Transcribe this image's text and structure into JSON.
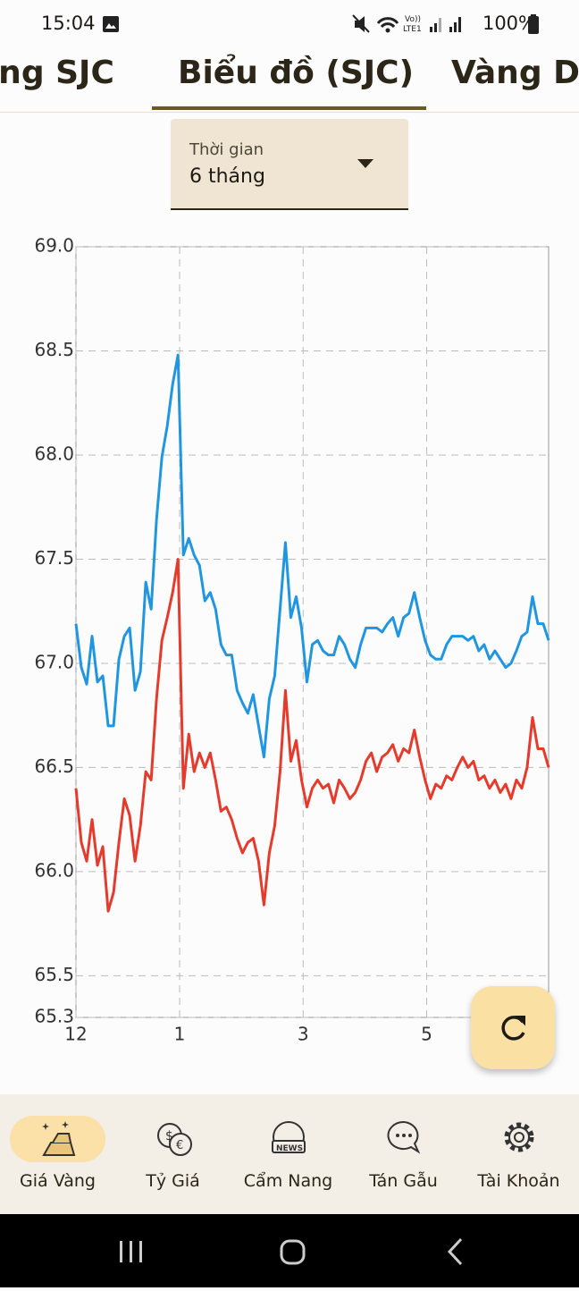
{
  "status": {
    "time": "15:04",
    "battery": "100%"
  },
  "tabs": [
    "Vàng SJC",
    "Biểu đồ (SJC)",
    "Vàng D"
  ],
  "filter": {
    "label": "Thời gian",
    "value": "6 tháng"
  },
  "chart_data": {
    "type": "line",
    "xlim": [
      0,
      88
    ],
    "xticks": [
      {
        "value": 0,
        "label": "12"
      },
      {
        "value": 19.3,
        "label": "1"
      },
      {
        "value": 42.3,
        "label": "3"
      },
      {
        "value": 65.3,
        "label": "5"
      }
    ],
    "ylim": [
      65.3,
      69
    ],
    "yticks": [
      {
        "value": 69,
        "label": "69.0"
      },
      68.5,
      {
        "value": 68,
        "label": "68.0"
      },
      67.5,
      {
        "value": 67,
        "label": "67.0"
      },
      66.5,
      {
        "value": 66,
        "label": "66.0"
      },
      65.5,
      65.3
    ],
    "grid": true,
    "series": [
      {
        "color": "#2196e0",
        "values": [
          67.19,
          66.98,
          66.9,
          67.13,
          66.91,
          66.94,
          66.7,
          66.7,
          67.02,
          67.13,
          67.17,
          66.87,
          66.96,
          67.39,
          67.26,
          67.69,
          67.99,
          68.14,
          68.34,
          68.48,
          67.52,
          67.6,
          67.52,
          67.47,
          67.3,
          67.34,
          67.26,
          67.09,
          67.04,
          67.04,
          66.87,
          66.81,
          66.76,
          66.85,
          66.7,
          66.55,
          66.83,
          66.94,
          67.26,
          67.58,
          67.22,
          67.32,
          67.17,
          66.91,
          67.09,
          67.11,
          67.06,
          67.04,
          67.04,
          67.13,
          67.09,
          67.02,
          66.98,
          67.09,
          67.17,
          67.17,
          67.17,
          67.15,
          67.19,
          67.22,
          67.13,
          67.22,
          67.24,
          67.34,
          67.22,
          67.11,
          67.04,
          67.02,
          67.02,
          67.09,
          67.13,
          67.13,
          67.13,
          67.11,
          67.13,
          67.06,
          67.09,
          67.02,
          67.06,
          67.02,
          66.98,
          67.0,
          67.06,
          67.13,
          67.15,
          67.32,
          67.19,
          67.19,
          67.11
        ]
      },
      {
        "color": "#e53b2c",
        "values": [
          66.4,
          66.14,
          66.05,
          66.25,
          66.03,
          66.12,
          65.81,
          65.9,
          66.14,
          66.35,
          66.27,
          66.05,
          66.22,
          66.48,
          66.44,
          66.83,
          67.11,
          67.22,
          67.34,
          67.5,
          66.4,
          66.66,
          66.48,
          66.57,
          66.5,
          66.57,
          66.44,
          66.29,
          66.31,
          66.25,
          66.16,
          66.09,
          66.14,
          66.16,
          66.05,
          65.84,
          66.09,
          66.22,
          66.48,
          66.87,
          66.53,
          66.63,
          66.44,
          66.31,
          66.4,
          66.44,
          66.4,
          66.42,
          66.33,
          66.44,
          66.4,
          66.35,
          66.38,
          66.44,
          66.53,
          66.57,
          66.48,
          66.55,
          66.57,
          66.61,
          66.53,
          66.59,
          66.57,
          66.68,
          66.55,
          66.44,
          66.35,
          66.42,
          66.4,
          66.46,
          66.44,
          66.5,
          66.55,
          66.5,
          66.53,
          66.44,
          66.46,
          66.4,
          66.44,
          66.38,
          66.42,
          66.35,
          66.44,
          66.4,
          66.5,
          66.74,
          66.59,
          66.59,
          66.5
        ]
      }
    ]
  },
  "nav": [
    "Giá Vàng",
    "Tỷ Giá",
    "Cẩm Nang",
    "Tán Gẫu",
    "Tài Khoản"
  ]
}
